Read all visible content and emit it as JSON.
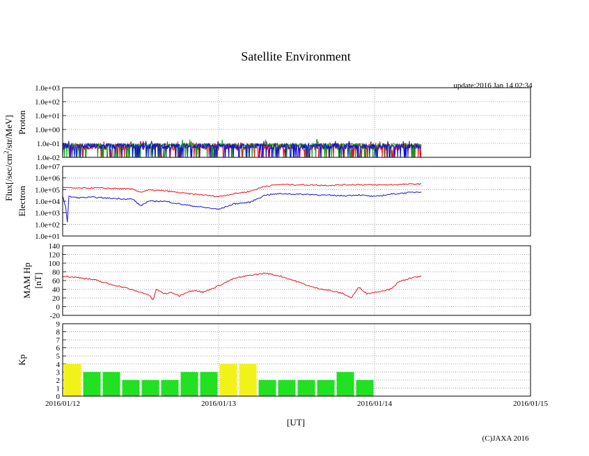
{
  "title": "Satellite Environment",
  "update": "update:2016 Jan 14 02:34",
  "copyright": "(C)JAXA 2016",
  "colors": {
    "red": "#e8101c",
    "green": "#10a010",
    "blue": "#1010d8",
    "kp_low": "#22e022",
    "kp_high": "#f2f218",
    "grid": "#888888"
  },
  "chart_data": [
    {
      "type": "line",
      "name": "proton",
      "ylabel": "Proton",
      "scale": "log",
      "ylim": [
        0.01,
        1000
      ],
      "y_ticks": [
        "1.0e+03",
        "1.0e+02",
        "1.0e+01",
        "1.0e+00",
        "1.0e-01",
        "1.0e-02"
      ],
      "series": [
        {
          "name": "red",
          "color": "red",
          "base": 0.055,
          "noise": 0.6
        },
        {
          "name": "green",
          "color": "green",
          "base": 0.075,
          "noise": 0.25
        },
        {
          "name": "blue",
          "color": "blue",
          "base": 0.06,
          "noise": 0.45
        }
      ]
    },
    {
      "type": "line",
      "name": "electron",
      "ylabel": "Electron",
      "scale": "log",
      "ylim": [
        10,
        10000000
      ],
      "y_ticks": [
        "1.0e+07",
        "1.0e+06",
        "1.0e+05",
        "1.0e+04",
        "1.0e+03",
        "1.0e+02",
        "1.0e+01"
      ],
      "series": [
        {
          "name": "red",
          "color": "red",
          "points": [
            [
              0,
              150000
            ],
            [
              0.1,
              130000
            ],
            [
              0.2,
              140000
            ],
            [
              0.3,
              130000
            ],
            [
              0.45,
              110000
            ],
            [
              0.5,
              60000
            ],
            [
              0.55,
              90000
            ],
            [
              0.65,
              80000
            ],
            [
              0.8,
              45000
            ],
            [
              0.9,
              35000
            ],
            [
              1.0,
              25000
            ],
            [
              1.1,
              45000
            ],
            [
              1.2,
              70000
            ],
            [
              1.3,
              200000
            ],
            [
              1.4,
              280000
            ],
            [
              1.5,
              260000
            ],
            [
              1.6,
              250000
            ],
            [
              1.7,
              230000
            ],
            [
              1.8,
              260000
            ],
            [
              1.9,
              270000
            ],
            [
              2.0,
              250000
            ],
            [
              2.1,
              260000
            ],
            [
              2.25,
              300000
            ],
            [
              2.3,
              310000
            ]
          ]
        },
        {
          "name": "blue",
          "color": "blue",
          "points": [
            [
              0,
              25000
            ],
            [
              0.02,
              3000
            ],
            [
              0.03,
              150
            ],
            [
              0.04,
              25000
            ],
            [
              0.1,
              20000
            ],
            [
              0.2,
              22000
            ],
            [
              0.3,
              18000
            ],
            [
              0.45,
              15000
            ],
            [
              0.5,
              4000
            ],
            [
              0.55,
              10000
            ],
            [
              0.65,
              10000
            ],
            [
              0.8,
              4500
            ],
            [
              0.9,
              3000
            ],
            [
              1.0,
              2000
            ],
            [
              1.1,
              6000
            ],
            [
              1.2,
              8000
            ],
            [
              1.3,
              35000
            ],
            [
              1.4,
              45000
            ],
            [
              1.5,
              40000
            ],
            [
              1.6,
              38000
            ],
            [
              1.7,
              32000
            ],
            [
              1.8,
              30000
            ],
            [
              1.9,
              35000
            ],
            [
              2.0,
              25000
            ],
            [
              2.1,
              40000
            ],
            [
              2.25,
              60000
            ],
            [
              2.3,
              65000
            ]
          ]
        }
      ]
    },
    {
      "type": "line",
      "name": "mam_hp",
      "ylabel": "MAM Hp",
      "ylabel2": "[nT]",
      "scale": "linear",
      "ylim": [
        -20,
        140
      ],
      "y_ticks": [
        "140",
        "120",
        "100",
        "80",
        "60",
        "40",
        "20",
        "0",
        "-20"
      ],
      "series": [
        {
          "name": "red",
          "color": "red",
          "points": [
            [
              0,
              70
            ],
            [
              0.1,
              67
            ],
            [
              0.2,
              62
            ],
            [
              0.3,
              52
            ],
            [
              0.35,
              48
            ],
            [
              0.4,
              44
            ],
            [
              0.45,
              38
            ],
            [
              0.5,
              33
            ],
            [
              0.55,
              28
            ],
            [
              0.58,
              15
            ],
            [
              0.6,
              40
            ],
            [
              0.65,
              30
            ],
            [
              0.7,
              32
            ],
            [
              0.75,
              25
            ],
            [
              0.8,
              34
            ],
            [
              0.85,
              38
            ],
            [
              0.9,
              33
            ],
            [
              1.0,
              48
            ],
            [
              1.1,
              65
            ],
            [
              1.2,
              72
            ],
            [
              1.3,
              77
            ],
            [
              1.4,
              70
            ],
            [
              1.5,
              58
            ],
            [
              1.6,
              45
            ],
            [
              1.7,
              38
            ],
            [
              1.8,
              30
            ],
            [
              1.85,
              20
            ],
            [
              1.9,
              45
            ],
            [
              1.95,
              30
            ],
            [
              2.0,
              33
            ],
            [
              2.1,
              40
            ],
            [
              2.15,
              55
            ],
            [
              2.2,
              63
            ],
            [
              2.3,
              70
            ]
          ]
        }
      ]
    },
    {
      "type": "bar",
      "name": "kp",
      "ylabel": "Kp",
      "ylim": [
        0,
        9
      ],
      "y_ticks": [
        "9",
        "8",
        "7",
        "6",
        "5",
        "4",
        "3",
        "2",
        "1",
        "0"
      ],
      "values": [
        4,
        3,
        3,
        2,
        2,
        2,
        3,
        3,
        4,
        4,
        2,
        2,
        2,
        2,
        3,
        2
      ],
      "bar_width_days": 0.125
    }
  ],
  "shared_ylabel": "Flux[/sec/cm",
  "shared_ylabel_sup": "2",
  "shared_ylabel_tail": "/str/MeV]",
  "x_axis": {
    "label": "[UT]",
    "range_days": [
      0,
      3
    ],
    "ticks": [
      "2016/01/12",
      "2016/01/13",
      "2016/01/14",
      "2016/01/15"
    ]
  }
}
